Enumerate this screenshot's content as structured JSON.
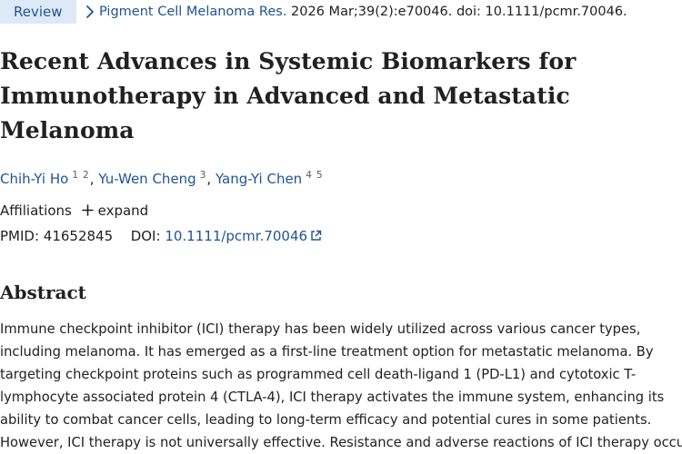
{
  "header": {
    "badge_label": "Review",
    "journal": "Pigment Cell Melanoma Res.",
    "citation": " 2026 Mar;39(2):e70046. doi: 10.1111/pcmr.70046."
  },
  "article": {
    "title": "Recent Advances in Systemic Biomarkers for Immunotherapy in Advanced and Metastatic Melanoma",
    "authors": [
      {
        "name": "Chih-Yi Ho",
        "affs": [
          "1",
          "2"
        ]
      },
      {
        "name": "Yu-Wen Cheng",
        "affs": [
          "3"
        ]
      },
      {
        "name": "Yang-Yi Chen",
        "affs": [
          "4",
          "5"
        ]
      }
    ],
    "separator": ",",
    "affiliations_label": "Affiliations",
    "expand_label": "expand",
    "pmid_label": "PMID: 41652845",
    "doi_label": "DOI:",
    "doi_value": "10.1111/pcmr.70046"
  },
  "abstract": {
    "heading": "Abstract",
    "lines": [
      "Immune checkpoint inhibitor (ICI) therapy has been widely utilized across various cancer types,",
      "including melanoma. It has emerged as a first-line treatment option for metastatic melanoma. By",
      "targeting checkpoint proteins such as programmed cell death-ligand 1 (PD-L1) and cytotoxic T-",
      "lymphocyte associated protein 4 (CTLA-4), ICI therapy activates the immune system, enhancing its",
      "ability to combat cancer cells, leading to long-term efficacy and potential cures in some patients.",
      "However, ICI therapy is not universally effective. Resistance and adverse reactions of ICI therapy occur"
    ]
  },
  "colors": {
    "link": "#205493",
    "badge_bg": "#dde9f6",
    "text": "#212121"
  },
  "icons": {
    "breadcrumb": "chevron-right-icon",
    "expand": "plus-icon",
    "external": "external-link-icon"
  }
}
